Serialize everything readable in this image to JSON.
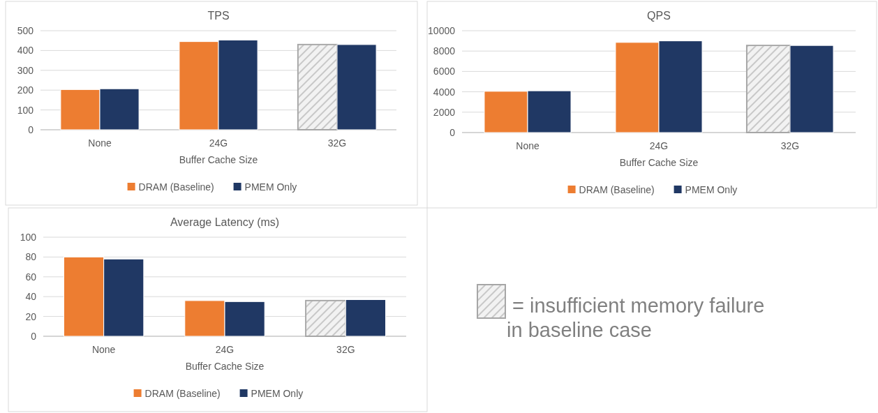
{
  "chart_data": [
    {
      "type": "bar",
      "title": "TPS",
      "xlabel": "Buffer Cache Size",
      "categories": [
        "None",
        "24G",
        "32G"
      ],
      "ylim": [
        0,
        500
      ],
      "yticks": [
        0,
        100,
        200,
        300,
        400,
        500
      ],
      "grid": "y",
      "legend": "bottom",
      "series": [
        {
          "name": "DRAM (Baseline)",
          "color": "#ed7d31",
          "colors": [
            "#ed7d31",
            "#ed7d31",
            "#ececec"
          ],
          "values": [
            203,
            445,
            430
          ]
        },
        {
          "name": "PMEM Only",
          "color": "#203864",
          "values": [
            207,
            453,
            430
          ]
        }
      ]
    },
    {
      "type": "bar",
      "title": "QPS",
      "xlabel": "Buffer Cache Size",
      "categories": [
        "None",
        "24G",
        "32G"
      ],
      "ylim": [
        0,
        10000
      ],
      "yticks": [
        0,
        2000,
        4000,
        6000,
        8000,
        10000
      ],
      "grid": "y",
      "legend": "bottom",
      "series": [
        {
          "name": "DRAM (Baseline)",
          "color": "#ed7d31",
          "colors": [
            "#ed7d31",
            "#ed7d31",
            "#ececec"
          ],
          "values": [
            4050,
            8850,
            8550
          ]
        },
        {
          "name": "PMEM Only",
          "color": "#203864",
          "values": [
            4100,
            9000,
            8550
          ]
        }
      ]
    },
    {
      "type": "bar",
      "title": "Average Latency (ms)",
      "xlabel": "Buffer Cache Size",
      "categories": [
        "None",
        "24G",
        "32G"
      ],
      "ylim": [
        0,
        100
      ],
      "yticks": [
        0,
        20,
        40,
        60,
        80,
        100
      ],
      "grid": "y",
      "legend": "bottom",
      "series": [
        {
          "name": "DRAM (Baseline)",
          "color": "#ed7d31",
          "colors": [
            "#ed7d31",
            "#ed7d31",
            "#ececec"
          ],
          "values": [
            80,
            36,
            36
          ]
        },
        {
          "name": "PMEM Only",
          "color": "#203864",
          "values": [
            78,
            35,
            37
          ]
        }
      ]
    },
    {
      "type": "other",
      "annotations": [
        "= insufficient memory failure in baseline case"
      ]
    }
  ]
}
